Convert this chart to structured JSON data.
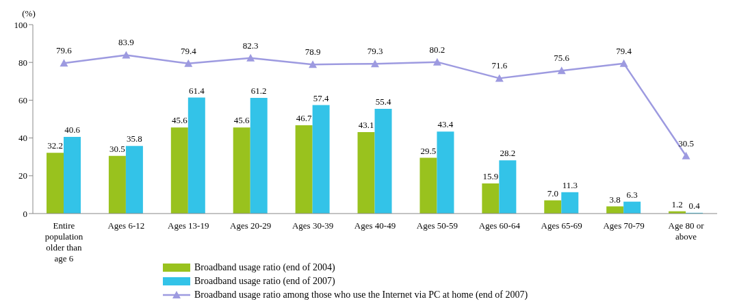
{
  "chart_data": {
    "type": "bar",
    "categories": [
      "Entire population older than age 6",
      "Ages 6-12",
      "Ages 13-19",
      "Ages 20-29",
      "Ages 30-39",
      "Ages 40-49",
      "Ages 50-59",
      "Ages 60-64",
      "Ages 65-69",
      "Ages 70-79",
      "Age 80 or above"
    ],
    "ylabel": "(%)",
    "ylim": [
      0,
      100
    ],
    "yticks": [
      0,
      20,
      40,
      60,
      80,
      100
    ],
    "grid": false,
    "legend": "bottom",
    "marker": "triangle",
    "line_style": "solid",
    "series": [
      {
        "name": "Broadband usage ratio (end of 2004)",
        "color": "#99c21e",
        "values": [
          32.2,
          30.5,
          45.6,
          45.6,
          46.7,
          43.1,
          29.5,
          15.9,
          7.0,
          3.8,
          1.2
        ],
        "value_labels": [
          "32.2",
          "30.5",
          "45.6",
          "45.6",
          "46.7",
          "43.1",
          "29.5",
          "15.9",
          "7.0",
          "3.8",
          "1.2"
        ]
      },
      {
        "name": "Broadband usage ratio (end of 2007)",
        "color": "#33c3e8",
        "values": [
          40.6,
          35.8,
          61.4,
          61.2,
          57.4,
          55.4,
          43.4,
          28.2,
          11.3,
          6.3,
          0.4
        ],
        "value_labels": [
          "40.6",
          "35.8",
          "61.4",
          "61.2",
          "57.4",
          "55.4",
          "43.4",
          "28.2",
          "11.3",
          "6.3",
          "0.4"
        ]
      },
      {
        "name": "Broadband usage ratio among those who use the Internet via PC at home (end of 2007)",
        "type": "line",
        "color": "#9d9ae0",
        "values": [
          79.6,
          83.9,
          79.4,
          82.3,
          78.9,
          79.3,
          80.2,
          71.6,
          75.6,
          79.4,
          30.5
        ],
        "value_labels": [
          "79.6",
          "83.9",
          "79.4",
          "82.3",
          "78.9",
          "79.3",
          "80.2",
          "71.6",
          "75.6",
          "79.4",
          "30.5"
        ]
      }
    ]
  }
}
